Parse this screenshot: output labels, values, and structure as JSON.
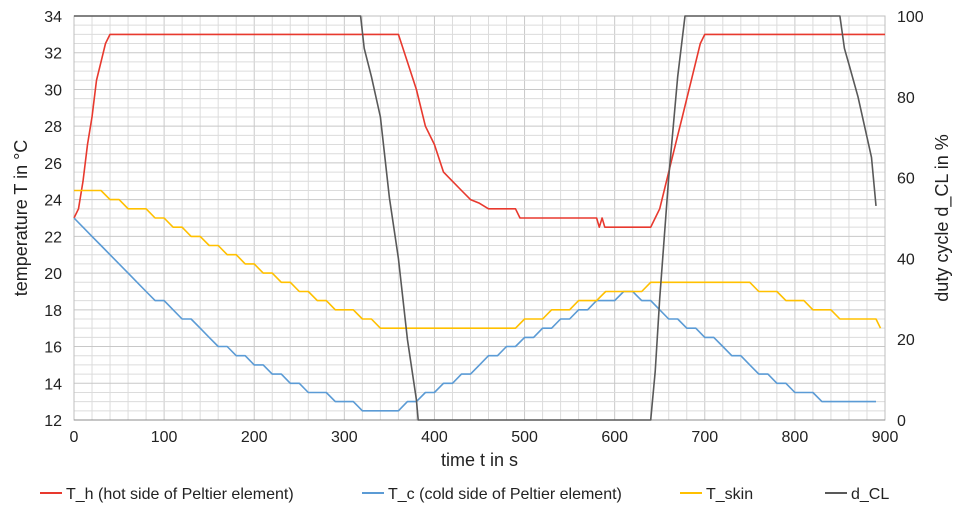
{
  "chart_data": {
    "type": "line",
    "xlabel": "time t in s",
    "ylabel": "temperature T in °C",
    "y2label": "duty cycle d_CL in %",
    "xlim": [
      0,
      900
    ],
    "ylim": [
      12,
      34
    ],
    "y2lim": [
      0,
      100
    ],
    "x_ticks": [
      "0",
      "100",
      "200",
      "300",
      "400",
      "500",
      "600",
      "700",
      "800",
      "900"
    ],
    "y_ticks": [
      "12",
      "14",
      "16",
      "18",
      "20",
      "22",
      "24",
      "26",
      "28",
      "30",
      "32",
      "34"
    ],
    "y2_ticks": [
      "0",
      "20",
      "40",
      "60",
      "80",
      "100"
    ],
    "grid": true,
    "legend_position": "bottom",
    "series": [
      {
        "name": "T_h (hot side of Peltier element)",
        "color": "#e8392e",
        "axis": "left",
        "x": [
          0,
          5,
          10,
          15,
          20,
          25,
          30,
          35,
          40,
          45,
          300,
          360,
          370,
          380,
          390,
          400,
          410,
          420,
          430,
          440,
          450,
          460,
          470,
          480,
          490,
          495,
          500,
          510,
          520,
          550,
          580,
          583,
          586,
          589,
          592,
          600,
          610,
          620,
          630,
          640,
          645,
          650,
          655,
          660,
          665,
          670,
          675,
          680,
          685,
          690,
          695,
          700,
          705,
          710,
          720,
          800,
          900
        ],
        "y": [
          23,
          23.5,
          25,
          27,
          28.5,
          30.5,
          31.5,
          32.5,
          33,
          33,
          33,
          33,
          31.5,
          30,
          28,
          27,
          25.5,
          25,
          24.5,
          24,
          23.8,
          23.5,
          23.5,
          23.5,
          23.5,
          23,
          23,
          23,
          23,
          23,
          23,
          22.5,
          23,
          22.5,
          22.5,
          22.5,
          22.5,
          22.5,
          22.5,
          22.5,
          23,
          23.5,
          24.5,
          25.5,
          26.5,
          27.5,
          28.5,
          29.5,
          30.5,
          31.5,
          32.5,
          33,
          33,
          33,
          33,
          33,
          33
        ]
      },
      {
        "name": "T_c (cold side of Peltier element)",
        "color": "#5b9bd5",
        "axis": "left",
        "x": [
          0,
          10,
          20,
          30,
          40,
          50,
          60,
          70,
          80,
          90,
          100,
          110,
          120,
          130,
          140,
          150,
          160,
          170,
          180,
          190,
          200,
          210,
          220,
          230,
          240,
          250,
          260,
          270,
          280,
          290,
          300,
          310,
          320,
          330,
          340,
          350,
          360,
          370,
          380,
          390,
          400,
          410,
          420,
          430,
          440,
          450,
          460,
          470,
          480,
          490,
          500,
          510,
          520,
          530,
          540,
          550,
          560,
          570,
          580,
          590,
          600,
          610,
          620,
          630,
          640,
          650,
          660,
          670,
          680,
          690,
          700,
          710,
          720,
          730,
          740,
          750,
          760,
          770,
          780,
          790,
          800,
          810,
          820,
          830,
          840,
          850,
          860,
          870,
          880,
          890
        ],
        "y": [
          23,
          22.5,
          22,
          21.5,
          21,
          20.5,
          20,
          19.5,
          19,
          18.5,
          18.5,
          18,
          17.5,
          17.5,
          17,
          16.5,
          16,
          16,
          15.5,
          15.5,
          15,
          15,
          14.5,
          14.5,
          14,
          14,
          13.5,
          13.5,
          13.5,
          13,
          13,
          13,
          12.5,
          12.5,
          12.5,
          12.5,
          12.5,
          13,
          13,
          13.5,
          13.5,
          14,
          14,
          14.5,
          14.5,
          15,
          15.5,
          15.5,
          16,
          16,
          16.5,
          16.5,
          17,
          17,
          17.5,
          17.5,
          18,
          18,
          18.5,
          18.5,
          18.5,
          19,
          19,
          18.5,
          18.5,
          18,
          17.5,
          17.5,
          17,
          17,
          16.5,
          16.5,
          16,
          15.5,
          15.5,
          15,
          14.5,
          14.5,
          14,
          14,
          13.5,
          13.5,
          13.5,
          13,
          13,
          13,
          13,
          13,
          13,
          13
        ]
      },
      {
        "name": "T_skin",
        "color": "#ffc000",
        "axis": "left",
        "x": [
          0,
          10,
          20,
          30,
          40,
          50,
          60,
          70,
          80,
          90,
          100,
          110,
          120,
          130,
          140,
          150,
          160,
          170,
          180,
          190,
          200,
          210,
          220,
          230,
          240,
          250,
          260,
          270,
          280,
          290,
          300,
          310,
          320,
          330,
          340,
          350,
          360,
          370,
          380,
          390,
          400,
          410,
          420,
          430,
          440,
          450,
          460,
          470,
          480,
          490,
          500,
          510,
          520,
          530,
          540,
          550,
          560,
          570,
          580,
          590,
          600,
          610,
          620,
          630,
          640,
          650,
          660,
          670,
          680,
          690,
          700,
          710,
          720,
          730,
          740,
          750,
          760,
          770,
          780,
          790,
          800,
          810,
          820,
          830,
          840,
          850,
          860,
          870,
          880,
          890,
          895
        ],
        "y": [
          24.5,
          24.5,
          24.5,
          24.5,
          24,
          24,
          23.5,
          23.5,
          23.5,
          23,
          23,
          22.5,
          22.5,
          22,
          22,
          21.5,
          21.5,
          21,
          21,
          20.5,
          20.5,
          20,
          20,
          19.5,
          19.5,
          19,
          19,
          18.5,
          18.5,
          18,
          18,
          18,
          17.5,
          17.5,
          17,
          17,
          17,
          17,
          17,
          17,
          17,
          17,
          17,
          17,
          17,
          17,
          17,
          17,
          17,
          17,
          17.5,
          17.5,
          17.5,
          18,
          18,
          18,
          18.5,
          18.5,
          18.5,
          19,
          19,
          19,
          19,
          19,
          19.5,
          19.5,
          19.5,
          19.5,
          19.5,
          19.5,
          19.5,
          19.5,
          19.5,
          19.5,
          19.5,
          19.5,
          19,
          19,
          19,
          18.5,
          18.5,
          18.5,
          18,
          18,
          18,
          17.5,
          17.5,
          17.5,
          17.5,
          17.5,
          17
        ]
      },
      {
        "name": "d_CL",
        "color": "#595959",
        "axis": "right",
        "x": [
          0,
          318,
          322,
          330,
          340,
          345,
          350,
          360,
          370,
          380,
          382,
          385,
          400,
          500,
          600,
          640,
          645,
          650,
          660,
          670,
          678,
          700,
          800,
          850,
          855,
          860,
          870,
          880,
          885,
          890
        ],
        "y": [
          100,
          100,
          92,
          85,
          75,
          65,
          55,
          40,
          20,
          5,
          0,
          0,
          0,
          0,
          0,
          0,
          12,
          30,
          60,
          85,
          100,
          100,
          100,
          100,
          92,
          88,
          80,
          70,
          65,
          53
        ]
      }
    ]
  }
}
